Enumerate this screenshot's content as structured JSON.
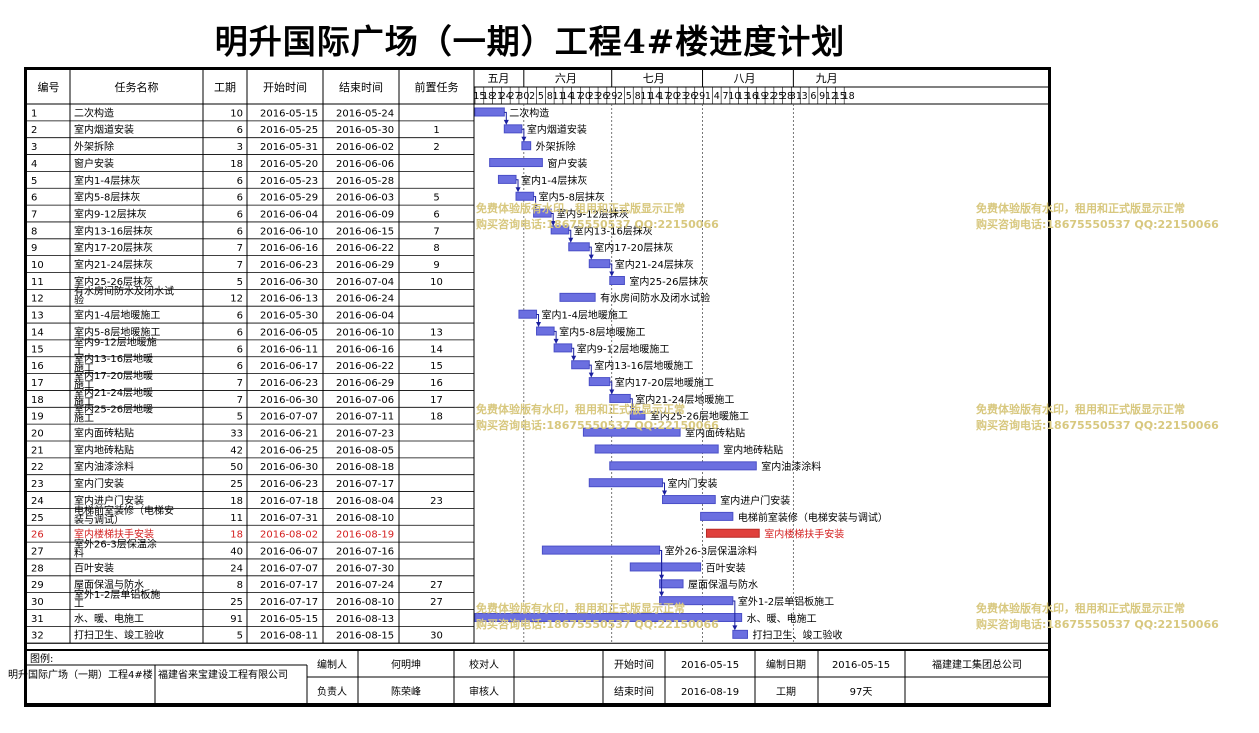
{
  "title": "明升国际广场（一期）工程4#楼进度计划",
  "columns": [
    "编号",
    "任务名称",
    "工期",
    "开始时间",
    "结束时间",
    "前置任务"
  ],
  "months": [
    "五月",
    "六月",
    "七月",
    "八月",
    "九月"
  ],
  "day_labels": [
    "15",
    "18",
    "21",
    "24",
    "27",
    "30",
    "2",
    "5",
    "8",
    "11",
    "14",
    "17",
    "20",
    "23",
    "26",
    "29",
    "2",
    "5",
    "8",
    "11",
    "14",
    "17",
    "20",
    "23",
    "26",
    "29",
    "1",
    "4",
    "7",
    "10",
    "13",
    "16",
    "19",
    "22",
    "25",
    "28",
    "31",
    "3",
    "6",
    "9",
    "12",
    "15",
    "18"
  ],
  "chart_data": {
    "type": "gantt",
    "timeline_start": "2016-05-15",
    "timeline_end": "2016-09-20",
    "tasks": [
      {
        "id": "1",
        "name": "二次构造",
        "duration": "10",
        "start": "2016-05-15",
        "end": "2016-05-24",
        "pred": ""
      },
      {
        "id": "2",
        "name": "室内烟道安装",
        "duration": "6",
        "start": "2016-05-25",
        "end": "2016-05-30",
        "pred": "1"
      },
      {
        "id": "3",
        "name": "外架拆除",
        "duration": "3",
        "start": "2016-05-31",
        "end": "2016-06-02",
        "pred": "2"
      },
      {
        "id": "4",
        "name": "窗户安装",
        "duration": "18",
        "start": "2016-05-20",
        "end": "2016-06-06",
        "pred": ""
      },
      {
        "id": "5",
        "name": "室内1-4层抹灰",
        "duration": "6",
        "start": "2016-05-23",
        "end": "2016-05-28",
        "pred": ""
      },
      {
        "id": "6",
        "name": "室内5-8层抹灰",
        "duration": "6",
        "start": "2016-05-29",
        "end": "2016-06-03",
        "pred": "5"
      },
      {
        "id": "7",
        "name": "室内9-12层抹灰",
        "duration": "6",
        "start": "2016-06-04",
        "end": "2016-06-09",
        "pred": "6"
      },
      {
        "id": "8",
        "name": "室内13-16层抹灰",
        "duration": "6",
        "start": "2016-06-10",
        "end": "2016-06-15",
        "pred": "7"
      },
      {
        "id": "9",
        "name": "室内17-20层抹灰",
        "duration": "7",
        "start": "2016-06-16",
        "end": "2016-06-22",
        "pred": "8"
      },
      {
        "id": "10",
        "name": "室内21-24层抹灰",
        "duration": "7",
        "start": "2016-06-23",
        "end": "2016-06-29",
        "pred": "9"
      },
      {
        "id": "11",
        "name": "室内25-26层抹灰",
        "duration": "5",
        "start": "2016-06-30",
        "end": "2016-07-04",
        "pred": "10"
      },
      {
        "id": "12",
        "name": "有水房间防水及闭水试验",
        "duration": "12",
        "start": "2016-06-13",
        "end": "2016-06-24",
        "pred": ""
      },
      {
        "id": "13",
        "name": "室内1-4层地暖施工",
        "duration": "6",
        "start": "2016-05-30",
        "end": "2016-06-04",
        "pred": ""
      },
      {
        "id": "14",
        "name": "室内5-8层地暖施工",
        "duration": "6",
        "start": "2016-06-05",
        "end": "2016-06-10",
        "pred": "13"
      },
      {
        "id": "15",
        "name": "室内9-12层地暖施工",
        "duration": "6",
        "start": "2016-06-11",
        "end": "2016-06-16",
        "pred": "14"
      },
      {
        "id": "16",
        "name": "室内13-16层地暖施工",
        "duration": "6",
        "start": "2016-06-17",
        "end": "2016-06-22",
        "pred": "15"
      },
      {
        "id": "17",
        "name": "室内17-20层地暖施工",
        "duration": "7",
        "start": "2016-06-23",
        "end": "2016-06-29",
        "pred": "16"
      },
      {
        "id": "18",
        "name": "室内21-24层地暖施工",
        "duration": "7",
        "start": "2016-06-30",
        "end": "2016-07-06",
        "pred": "17"
      },
      {
        "id": "19",
        "name": "室内25-26层地暖施工",
        "duration": "5",
        "start": "2016-07-07",
        "end": "2016-07-11",
        "pred": "18"
      },
      {
        "id": "20",
        "name": "室内面砖粘贴",
        "duration": "33",
        "start": "2016-06-21",
        "end": "2016-07-23",
        "pred": ""
      },
      {
        "id": "21",
        "name": "室内地砖粘贴",
        "duration": "42",
        "start": "2016-06-25",
        "end": "2016-08-05",
        "pred": ""
      },
      {
        "id": "22",
        "name": "室内油漆涂料",
        "duration": "50",
        "start": "2016-06-30",
        "end": "2016-08-18",
        "pred": ""
      },
      {
        "id": "23",
        "name": "室内门安装",
        "duration": "25",
        "start": "2016-06-23",
        "end": "2016-07-17",
        "pred": ""
      },
      {
        "id": "24",
        "name": "室内进户门安装",
        "duration": "18",
        "start": "2016-07-18",
        "end": "2016-08-04",
        "pred": "23"
      },
      {
        "id": "25",
        "name": "电梯前室装修（电梯安装与调试）",
        "duration": "11",
        "start": "2016-07-31",
        "end": "2016-08-10",
        "pred": ""
      },
      {
        "id": "26",
        "name": "室内楼梯扶手安装",
        "duration": "18",
        "start": "2016-08-02",
        "end": "2016-08-19",
        "pred": "",
        "critical": true
      },
      {
        "id": "27",
        "name": "室外26-3层保温涂料",
        "duration": "40",
        "start": "2016-06-07",
        "end": "2016-07-16",
        "pred": ""
      },
      {
        "id": "28",
        "name": "百叶安装",
        "duration": "24",
        "start": "2016-07-07",
        "end": "2016-07-30",
        "pred": ""
      },
      {
        "id": "29",
        "name": "屋面保温与防水",
        "duration": "8",
        "start": "2016-07-17",
        "end": "2016-07-24",
        "pred": "27"
      },
      {
        "id": "30",
        "name": "室外1-2层单铝板施工",
        "duration": "25",
        "start": "2016-07-17",
        "end": "2016-08-10",
        "pred": "27"
      },
      {
        "id": "31",
        "name": "水、暖、电施工",
        "duration": "91",
        "start": "2016-05-15",
        "end": "2016-08-13",
        "pred": ""
      },
      {
        "id": "32",
        "name": "打扫卫生、竣工验收",
        "duration": "5",
        "start": "2016-08-11",
        "end": "2016-08-15",
        "pred": "30"
      }
    ]
  },
  "footer": {
    "legend_label": "图例:",
    "project_name": "明升国际广场（一期）工程4#楼",
    "contractor": "福建省来宝建设工程有限公司",
    "compiler_label": "编制人",
    "compiler": "何明坤",
    "checker_label": "校对人",
    "checker": "",
    "start_label": "开始时间",
    "start": "2016-05-15",
    "compile_date_label": "编制日期",
    "compile_date": "2016-05-15",
    "company": "福建建工集团总公司",
    "manager_label": "负责人",
    "manager": "陈荣峰",
    "reviewer_label": "审核人",
    "reviewer": "",
    "end_label": "结束时间",
    "end": "2016-08-19",
    "duration_label": "工期",
    "duration": "97天"
  },
  "watermark": {
    "line1": "免费体验版有水印，租用和正式版显示正常",
    "line2": "购买咨询电话:18675550537 QQ:22150066"
  },
  "colors": {
    "bar": "#4a4fc7",
    "bar_fill": "#6b6fe0",
    "critical": "#e0403c",
    "critical_text": "#d42020",
    "watermark": "#d8c87f"
  }
}
